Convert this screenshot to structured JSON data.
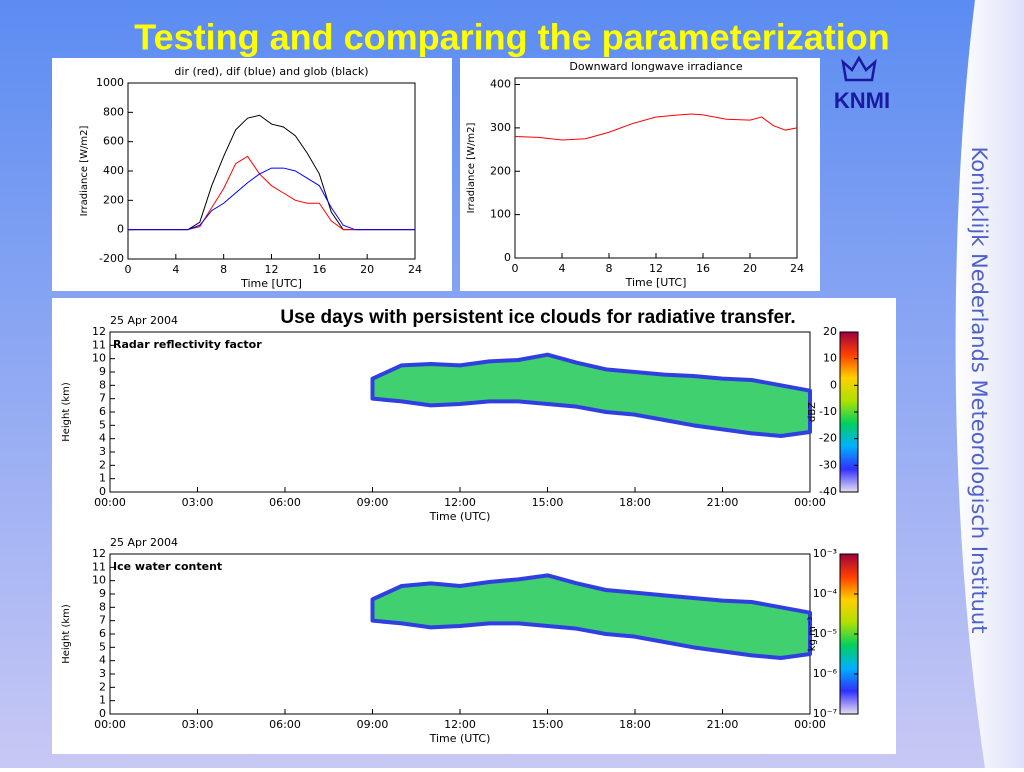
{
  "slide": {
    "title": "Testing and comparing the parameterization",
    "caption": "Use days with persistent ice clouds for radiative transfer.",
    "logo": "KNMI",
    "side_text": "Koninklijk Nederlands Meteorologisch Instituut"
  },
  "chart_data": [
    {
      "type": "line",
      "title": "dir (red), dif (blue) and glob (black)",
      "x_label": "Time [UTC]",
      "y_label": "Irradiance [W/m2]",
      "xlim": [
        0,
        24
      ],
      "xticks": [
        0,
        4,
        8,
        12,
        16,
        20,
        24
      ],
      "ylim": [
        -200,
        1000
      ],
      "yticks": [
        -200,
        0,
        200,
        400,
        600,
        800,
        1000
      ],
      "x": [
        0,
        1,
        2,
        3,
        4,
        5,
        6,
        7,
        8,
        9,
        10,
        11,
        12,
        13,
        14,
        15,
        16,
        17,
        18,
        19,
        20,
        21,
        22,
        23,
        24
      ],
      "series": [
        {
          "color": "#000000",
          "values": [
            0,
            0,
            0,
            0,
            0,
            0,
            50,
            300,
            500,
            680,
            760,
            780,
            720,
            700,
            640,
            520,
            380,
            120,
            0,
            0,
            0,
            0,
            0,
            0,
            0
          ]
        },
        {
          "color": "#ff0000",
          "values": [
            0,
            0,
            0,
            0,
            0,
            0,
            20,
            150,
            280,
            450,
            500,
            380,
            300,
            250,
            200,
            180,
            180,
            60,
            0,
            0,
            0,
            0,
            0,
            0,
            0
          ]
        },
        {
          "color": "#0000ff",
          "values": [
            0,
            0,
            0,
            0,
            0,
            0,
            30,
            130,
            180,
            250,
            320,
            380,
            420,
            420,
            400,
            350,
            300,
            150,
            30,
            0,
            0,
            0,
            0,
            0,
            0
          ]
        }
      ]
    },
    {
      "type": "line",
      "title": "Downward longwave irradiance",
      "x_label": "Time [UTC]",
      "y_label": "Irradiance [W/m2]",
      "xlim": [
        0,
        24
      ],
      "xticks": [
        0,
        4,
        8,
        12,
        16,
        20,
        24
      ],
      "ylim": [
        0,
        415
      ],
      "yticks": [
        0,
        100,
        200,
        300,
        400
      ],
      "x": [
        0,
        2,
        4,
        6,
        8,
        10,
        12,
        14,
        15,
        16,
        18,
        20,
        21,
        22,
        23,
        24
      ],
      "series": [
        {
          "color": "#ff0000",
          "values": [
            280,
            278,
            272,
            275,
            290,
            310,
            325,
            330,
            332,
            330,
            320,
            318,
            325,
            305,
            295,
            300
          ]
        }
      ]
    },
    {
      "type": "heatmap",
      "date": "25 Apr 2004",
      "panel_label": "Radar reflectivity factor",
      "x_label": "Time (UTC)",
      "y_label": "Height (km)",
      "xlim": [
        0,
        24
      ],
      "xticks": [
        {
          "value": 0,
          "label": "00:00"
        },
        {
          "value": 3,
          "label": "03:00"
        },
        {
          "value": 6,
          "label": "06:00"
        },
        {
          "value": 9,
          "label": "09:00"
        },
        {
          "value": 12,
          "label": "12:00"
        },
        {
          "value": 15,
          "label": "15:00"
        },
        {
          "value": 18,
          "label": "18:00"
        },
        {
          "value": 21,
          "label": "21:00"
        },
        {
          "value": 24,
          "label": "00:00"
        }
      ],
      "ylim": [
        0,
        12
      ],
      "yticks": [
        0,
        1,
        2,
        3,
        4,
        5,
        6,
        7,
        8,
        9,
        10,
        11,
        12
      ],
      "x": [
        9,
        10,
        11,
        12,
        13,
        14,
        15,
        16,
        17,
        18,
        19,
        20,
        21,
        22,
        23,
        24
      ],
      "series": [
        {
          "values": [
            8.5,
            9.5,
            9.6,
            9.5,
            9.8,
            9.9,
            10.3,
            9.7,
            9.2,
            9,
            8.8,
            8.7,
            8.5,
            8.4,
            8,
            7.6
          ]
        },
        {
          "values": [
            7,
            6.8,
            6.5,
            6.6,
            6.8,
            6.8,
            6.6,
            6.4,
            6,
            5.8,
            5.4,
            5,
            4.7,
            4.4,
            4.2,
            4.5
          ]
        }
      ],
      "colorbar": {
        "label": "dBZ",
        "clim": [
          -40,
          20
        ],
        "log": false,
        "colors": [
          "#e8e0f0",
          "#3030ff",
          "#00b0ff",
          "#00d060",
          "#b0e000",
          "#ffd000",
          "#ff4000",
          "#a00040"
        ],
        "ticks": [
          20,
          10,
          0,
          -10,
          -20,
          -30,
          -40
        ]
      }
    },
    {
      "type": "heatmap",
      "date": "25 Apr 2004",
      "panel_label": "Ice water content",
      "x_label": "Time (UTC)",
      "y_label": "Height (km)",
      "xlim": [
        0,
        24
      ],
      "xticks": [
        {
          "value": 0,
          "label": "00:00"
        },
        {
          "value": 3,
          "label": "03:00"
        },
        {
          "value": 6,
          "label": "06:00"
        },
        {
          "value": 9,
          "label": "09:00"
        },
        {
          "value": 12,
          "label": "12:00"
        },
        {
          "value": 15,
          "label": "15:00"
        },
        {
          "value": 18,
          "label": "18:00"
        },
        {
          "value": 21,
          "label": "21:00"
        },
        {
          "value": 24,
          "label": "00:00"
        }
      ],
      "ylim": [
        0,
        12
      ],
      "yticks": [
        0,
        1,
        2,
        3,
        4,
        5,
        6,
        7,
        8,
        9,
        10,
        11,
        12
      ],
      "x": [
        9,
        10,
        11,
        12,
        13,
        14,
        15,
        16,
        17,
        18,
        19,
        20,
        21,
        22,
        23,
        24
      ],
      "series": [
        {
          "values": [
            8.6,
            9.6,
            9.8,
            9.6,
            9.9,
            10.1,
            10.4,
            9.8,
            9.3,
            9.1,
            8.9,
            8.7,
            8.5,
            8.4,
            8,
            7.6
          ]
        },
        {
          "values": [
            7,
            6.8,
            6.5,
            6.6,
            6.8,
            6.8,
            6.6,
            6.4,
            6,
            5.8,
            5.4,
            5,
            4.7,
            4.4,
            4.2,
            4.5
          ]
        }
      ],
      "colorbar": {
        "label": "kg m⁻³",
        "clim": [
          1e-07,
          0.001
        ],
        "log": true,
        "colors": [
          "#e8e0f0",
          "#3030ff",
          "#00b0ff",
          "#00d060",
          "#b0e000",
          "#ffd000",
          "#ff4000",
          "#a00040"
        ],
        "ticks": [
          {
            "value": 0.001,
            "label": "10⁻³"
          },
          {
            "value": 0.0001,
            "label": "10⁻⁴"
          },
          {
            "value": 1e-05,
            "label": "10⁻⁵"
          },
          {
            "value": 1e-06,
            "label": "10⁻⁶"
          },
          {
            "value": 1e-07,
            "label": "10⁻⁷"
          }
        ]
      }
    }
  ]
}
